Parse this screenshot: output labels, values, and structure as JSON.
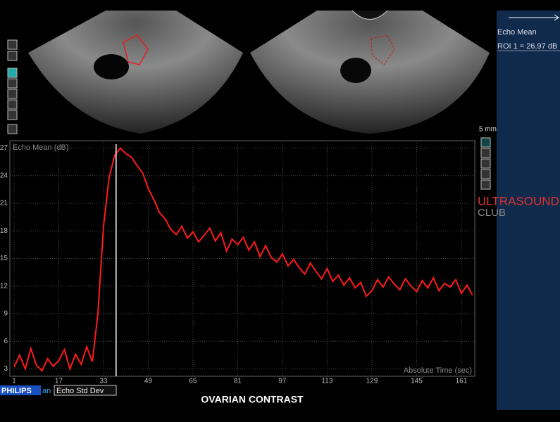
{
  "scale_label": "5 mm",
  "side_panel": {
    "title": "Echo Mean",
    "roi": "ROI 1 = 26.97 dB"
  },
  "watermark": {
    "line1": "ULTRASOUND",
    "line2": "CLUB"
  },
  "footer": {
    "brand": "PHILIPS",
    "brand_suffix": "an",
    "tab": "Echo Std Dev",
    "caption": "OVARIAN  CONTRAST"
  },
  "chart_data": {
    "type": "line",
    "ylabel": "Echo Mean (dB)",
    "xlabel": "Absolute Time (sec)",
    "xlim": [
      -0.5,
      165.8
    ],
    "ylim": [
      2.2,
      27.8
    ],
    "xticks": [
      1,
      17,
      33,
      49,
      65,
      81,
      97,
      113,
      129,
      145,
      161
    ],
    "yticks": [
      3,
      6,
      9,
      12,
      15,
      18,
      21,
      24,
      27
    ],
    "grid": true,
    "cursor_x": 37.5,
    "series": [
      {
        "color": "#ff1a1a",
        "x": [
          1,
          3,
          5,
          7,
          9,
          11,
          13,
          15,
          17,
          19,
          21,
          23,
          25,
          27,
          29,
          31,
          33,
          35,
          37,
          39,
          41,
          43,
          45,
          47,
          49,
          51,
          53,
          55,
          57,
          59,
          61,
          63,
          65,
          67,
          69,
          71,
          73,
          75,
          77,
          79,
          81,
          83,
          85,
          87,
          89,
          91,
          93,
          95,
          97,
          99,
          101,
          103,
          105,
          107,
          109,
          111,
          113,
          115,
          117,
          119,
          121,
          123,
          125,
          127,
          129,
          131,
          133,
          135,
          137,
          139,
          141,
          143,
          145,
          147,
          149,
          151,
          153,
          155,
          157,
          159,
          161,
          163,
          165
        ],
        "values": [
          3.2,
          4.5,
          3.0,
          5.2,
          3.4,
          2.8,
          4.1,
          3.3,
          3.9,
          5.1,
          3.0,
          4.6,
          3.5,
          5.4,
          3.8,
          9.0,
          18.5,
          23.8,
          26.2,
          27.0,
          26.4,
          26.0,
          25.1,
          24.3,
          22.6,
          21.4,
          20.0,
          19.3,
          18.2,
          17.6,
          18.5,
          17.2,
          17.9,
          16.8,
          17.5,
          18.3,
          16.9,
          17.8,
          15.8,
          17.1,
          16.5,
          17.3,
          15.9,
          16.8,
          15.2,
          16.4,
          15.1,
          14.6,
          15.5,
          14.2,
          14.9,
          14.0,
          13.3,
          14.5,
          13.6,
          12.8,
          13.9,
          12.5,
          13.2,
          12.1,
          12.9,
          11.8,
          12.4,
          10.9,
          11.5,
          12.7,
          11.9,
          13.0,
          12.2,
          11.6,
          12.8,
          12.0,
          11.4,
          12.6,
          11.8,
          12.9,
          11.5,
          12.3,
          11.9,
          12.7,
          11.2,
          12.1,
          11.0
        ]
      }
    ]
  }
}
